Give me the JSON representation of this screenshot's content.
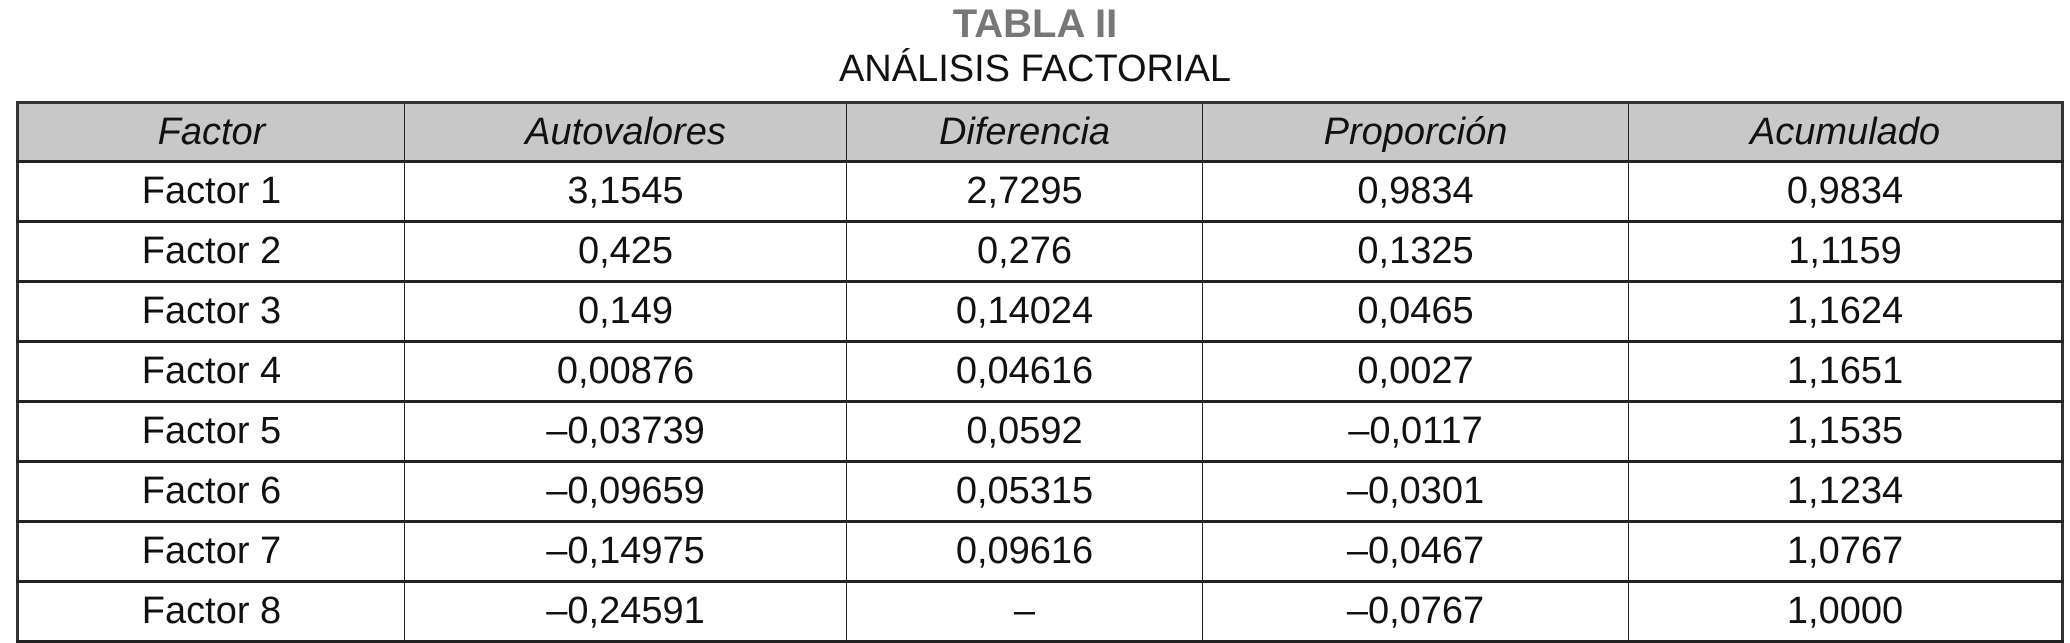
{
  "title": "TABLA II",
  "subtitle": "ANÁLISIS FACTORIAL",
  "table": {
    "headers": [
      "Factor",
      "Autovalores",
      "Diferencia",
      "Proporción",
      "Acumulado"
    ],
    "rows": [
      [
        "Factor 1",
        "3,1545",
        "2,7295",
        "0,9834",
        "0,9834"
      ],
      [
        "Factor 2",
        "0,425",
        "0,276",
        "0,1325",
        "1,1159"
      ],
      [
        "Factor 3",
        "0,149",
        "0,14024",
        "0,0465",
        "1,1624"
      ],
      [
        "Factor 4",
        "0,00876",
        "0,04616",
        "0,0027",
        "1,1651"
      ],
      [
        "Factor 5",
        "–0,03739",
        "0,0592",
        "–0,0117",
        "1,1535"
      ],
      [
        "Factor 6",
        "–0,09659",
        "0,05315",
        "–0,0301",
        "1,1234"
      ],
      [
        "Factor 7",
        "–0,14975",
        "0,09616",
        "–0,0467",
        "1,0767"
      ],
      [
        "Factor 8",
        "–0,24591",
        "–",
        "–0,0767",
        "1,0000"
      ]
    ]
  },
  "colors": {
    "title": "#777777",
    "header_bg": "#c8c8c8"
  }
}
